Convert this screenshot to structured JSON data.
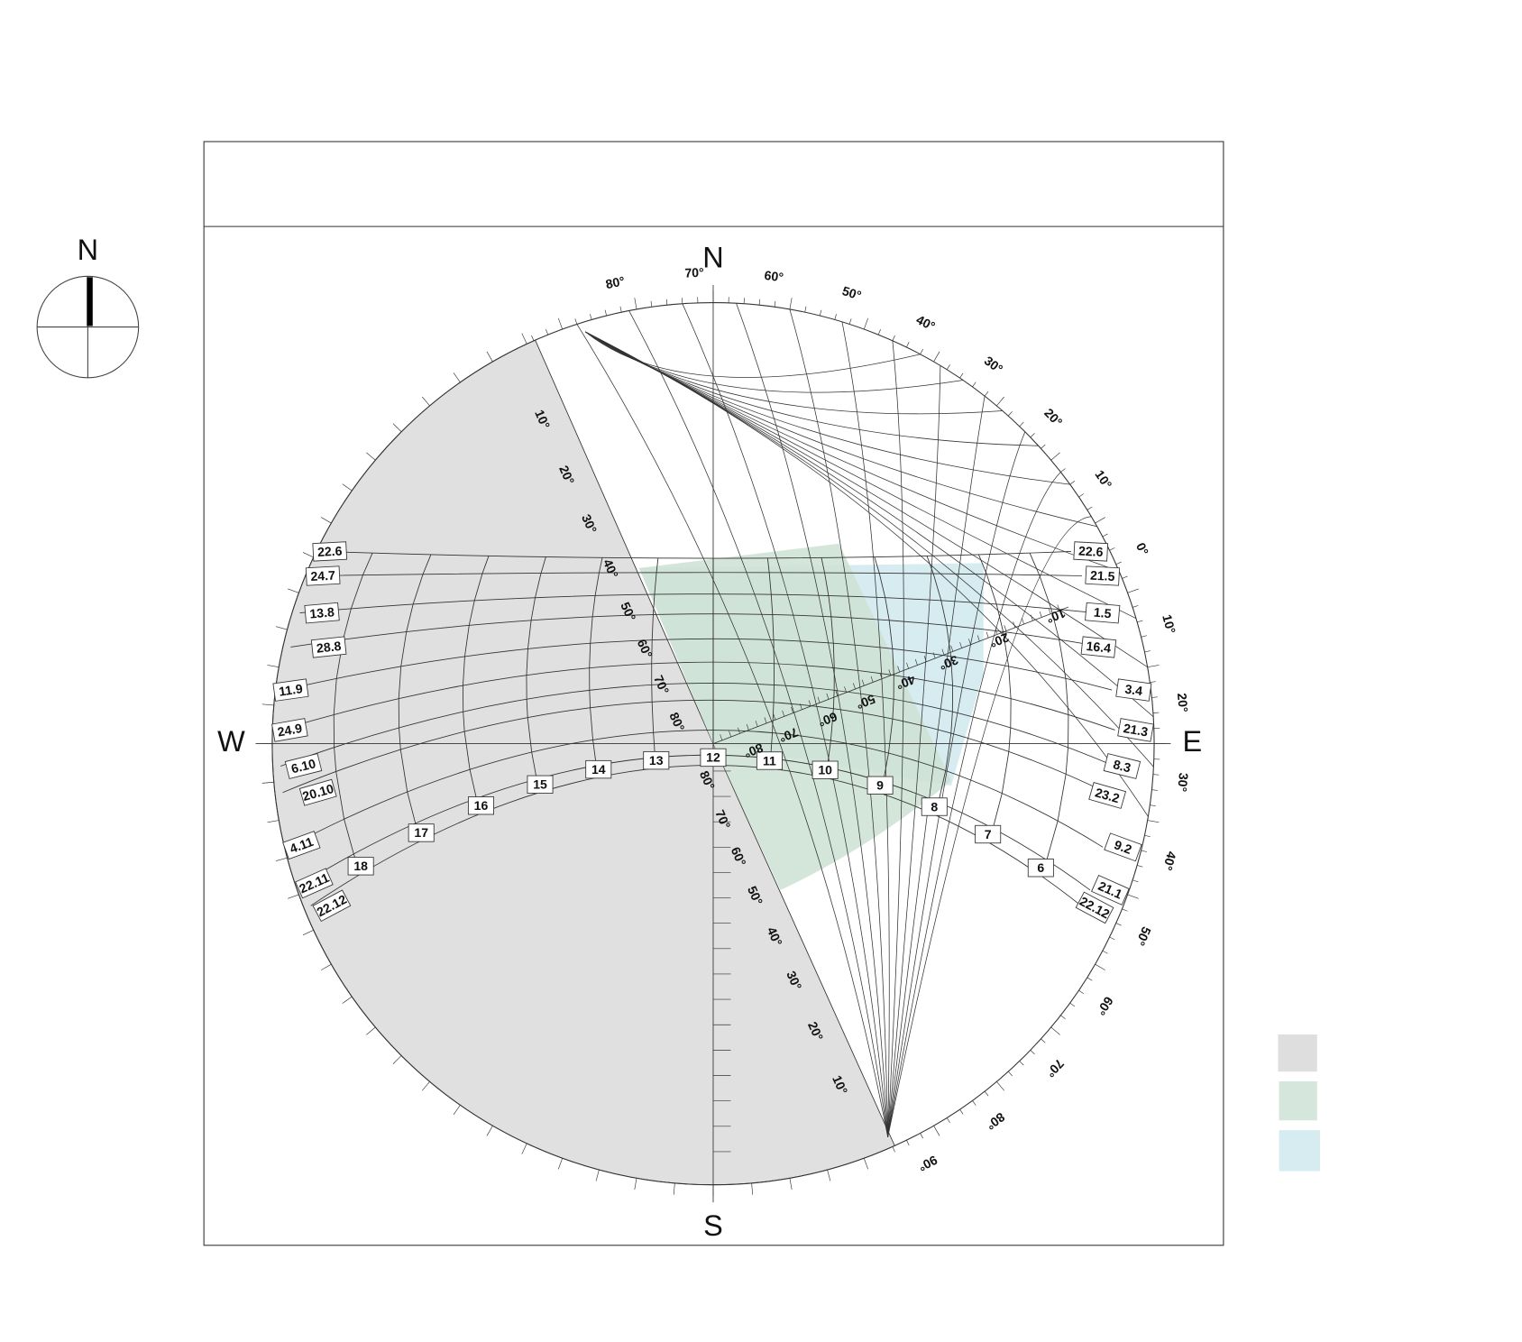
{
  "compass": {
    "label": "N"
  },
  "chart": {
    "directions": {
      "north": "N",
      "east": "E",
      "south": "S",
      "west": "W"
    },
    "outer_angle_labels": [
      "80°",
      "70°",
      "60°",
      "50°",
      "40°",
      "30°",
      "20°",
      "10°",
      "0°",
      "10°",
      "20°",
      "30°",
      "40°",
      "50°",
      "60°",
      "70°",
      "80°",
      "90°"
    ],
    "mask_edge_labels_upper": [
      "10°",
      "20°",
      "30°",
      "40°",
      "50°",
      "60°",
      "70°",
      "80°"
    ],
    "mask_edge_labels_lower": [
      "80°",
      "70°",
      "60°",
      "50°",
      "40°",
      "30°",
      "20°",
      "10°"
    ],
    "vsa_scale_labels": [
      "80°",
      "70°",
      "60°",
      "50°",
      "40°",
      "30°",
      "20°",
      "10°"
    ],
    "date_labels_left": [
      "22.6",
      "24.7",
      "13.8",
      "28.8",
      "11.9",
      "24.9",
      "6.10",
      "20.10",
      "4.11",
      "22.11",
      "22.12"
    ],
    "date_labels_right": [
      "22.6",
      "21.5",
      "1.5",
      "16.4",
      "3.4",
      "21.3",
      "8.3",
      "23.2",
      "9.2",
      "21.1",
      "22.12"
    ],
    "hour_labels": [
      "6",
      "7",
      "8",
      "9",
      "10",
      "11",
      "12",
      "13",
      "14",
      "15",
      "16",
      "17",
      "18"
    ]
  }
}
